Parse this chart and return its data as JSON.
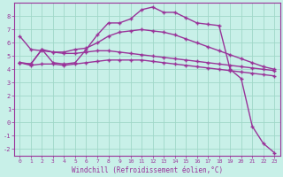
{
  "xlabel": "Windchill (Refroidissement éolien,°C)",
  "background_color": "#c8f0e8",
  "grid_color": "#a0d8c8",
  "line_color": "#993399",
  "xlim": [
    -0.5,
    23.5
  ],
  "ylim": [
    -2.5,
    9.0
  ],
  "xticks": [
    0,
    1,
    2,
    3,
    4,
    5,
    6,
    7,
    8,
    9,
    10,
    11,
    12,
    13,
    14,
    15,
    16,
    17,
    18,
    19,
    20,
    21,
    22,
    23
  ],
  "yticks": [
    -2,
    -1,
    0,
    1,
    2,
    3,
    4,
    5,
    6,
    7,
    8
  ],
  "line1_x": [
    0,
    1,
    2,
    3,
    4,
    5,
    6,
    7,
    8,
    9,
    10,
    11,
    12,
    13,
    14,
    15,
    16,
    17,
    18,
    19,
    20,
    21,
    22,
    23
  ],
  "line1_y": [
    4.5,
    4.4,
    5.5,
    4.5,
    4.4,
    4.5,
    5.5,
    6.6,
    7.5,
    7.5,
    7.8,
    8.5,
    8.7,
    8.3,
    8.3,
    7.9,
    7.5,
    7.4,
    7.3,
    4.0,
    3.3,
    -0.3,
    -1.6,
    -2.3
  ],
  "line2_x": [
    0,
    1,
    2,
    3,
    4,
    5,
    6,
    7,
    8,
    9,
    10,
    11,
    12,
    13,
    14,
    15,
    16,
    17,
    18,
    19,
    20,
    21,
    22,
    23
  ],
  "line2_y": [
    6.5,
    5.5,
    5.4,
    5.3,
    5.3,
    5.5,
    5.6,
    6.0,
    6.5,
    6.8,
    6.9,
    7.0,
    6.9,
    6.8,
    6.6,
    6.3,
    6.0,
    5.7,
    5.4,
    5.1,
    4.8,
    4.5,
    4.2,
    4.0
  ],
  "line3_x": [
    0,
    1,
    2,
    3,
    4,
    5,
    6,
    7,
    8,
    9,
    10,
    11,
    12,
    13,
    14,
    15,
    16,
    17,
    18,
    19,
    20,
    21,
    22,
    23
  ],
  "line3_y": [
    4.5,
    4.4,
    5.5,
    5.3,
    5.2,
    5.2,
    5.3,
    5.4,
    5.4,
    5.3,
    5.2,
    5.1,
    5.0,
    4.9,
    4.8,
    4.7,
    4.6,
    4.5,
    4.4,
    4.3,
    4.2,
    4.1,
    4.0,
    3.9
  ],
  "line4_x": [
    0,
    1,
    2,
    3,
    4,
    5,
    6,
    7,
    8,
    9,
    10,
    11,
    12,
    13,
    14,
    15,
    16,
    17,
    18,
    19,
    20,
    21,
    22,
    23
  ],
  "line4_y": [
    4.5,
    4.3,
    4.4,
    4.4,
    4.3,
    4.4,
    4.5,
    4.6,
    4.7,
    4.7,
    4.7,
    4.7,
    4.6,
    4.5,
    4.4,
    4.3,
    4.2,
    4.1,
    4.0,
    3.9,
    3.8,
    3.7,
    3.6,
    3.5
  ],
  "marker": "+",
  "markersize": 3,
  "linewidth": 1.0
}
